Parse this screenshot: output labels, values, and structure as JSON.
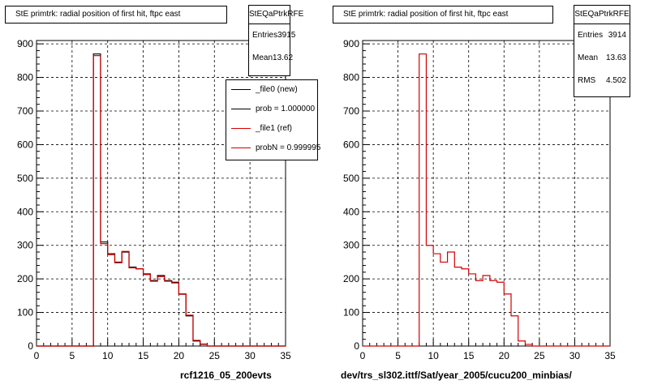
{
  "panels": [
    {
      "title": "StE primtrk: radial position of first hit, ftpc east",
      "stats": {
        "name": "StEQaPtrkRFE",
        "rows": [
          {
            "label": "Entries",
            "value": "3915"
          },
          {
            "label": "Mean",
            "value": "13.62"
          }
        ]
      },
      "legend": [
        {
          "text": "_file0 (new)",
          "color": "#000000"
        },
        {
          "text": "prob = 1.000000",
          "color": "#000000"
        },
        {
          "text": "_file1 (ref)",
          "color": "#d40000"
        },
        {
          "text": "probN = 0.999995",
          "color": "#d40000"
        }
      ],
      "caption": "rcf1216_05_200evts"
    },
    {
      "title": "StE primtrk: radial position of first hit, ftpc east",
      "stats": {
        "name": "StEQaPtrkRFE",
        "rows": [
          {
            "label": "Entries",
            "value": "3914"
          },
          {
            "label": "Mean",
            "value": "13.63"
          },
          {
            "label": "RMS",
            "value": "4.502"
          }
        ]
      },
      "legend": [],
      "caption": "dev/trs_sl302.ittf/Sat/year_2005/cucu200_minbias/"
    }
  ],
  "chart_data": [
    {
      "type": "histogram",
      "title": "StE primtrk: radial position of first hit, ftpc east",
      "xlim": [
        0,
        35
      ],
      "ylim": [
        0,
        910
      ],
      "xticks": [
        0,
        5,
        10,
        15,
        20,
        25,
        30,
        35
      ],
      "yticks": [
        0,
        100,
        200,
        300,
        400,
        500,
        600,
        700,
        800,
        900
      ],
      "grid": true,
      "bins": {
        "start": 0,
        "width": 1
      },
      "series": [
        {
          "name": "_file0 (new)",
          "color": "#000000",
          "values": [
            0,
            0,
            0,
            0,
            0,
            0,
            0,
            0,
            870,
            310,
            275,
            250,
            280,
            235,
            230,
            215,
            195,
            210,
            195,
            190,
            155,
            90,
            15,
            5,
            0,
            0,
            0,
            0,
            0,
            0,
            0,
            0,
            0,
            0,
            0
          ]
        },
        {
          "name": "_file1 (ref)",
          "color": "#d40000",
          "values": [
            0,
            0,
            0,
            0,
            0,
            0,
            0,
            0,
            865,
            305,
            272,
            248,
            282,
            233,
            230,
            213,
            193,
            207,
            193,
            188,
            154,
            92,
            17,
            6,
            0,
            0,
            0,
            0,
            0,
            0,
            0,
            0,
            0,
            0,
            0
          ]
        }
      ]
    },
    {
      "type": "histogram",
      "title": "StE primtrk: radial position of first hit, ftpc east",
      "xlim": [
        0,
        35
      ],
      "ylim": [
        0,
        910
      ],
      "xticks": [
        0,
        5,
        10,
        15,
        20,
        25,
        30,
        35
      ],
      "yticks": [
        0,
        100,
        200,
        300,
        400,
        500,
        600,
        700,
        800,
        900
      ],
      "grid": true,
      "bins": {
        "start": 0,
        "width": 1
      },
      "series": [
        {
          "color": "#d40000",
          "values": [
            0,
            0,
            0,
            0,
            0,
            0,
            0,
            0,
            870,
            300,
            275,
            250,
            280,
            235,
            230,
            215,
            195,
            210,
            195,
            190,
            155,
            90,
            15,
            5,
            0,
            0,
            0,
            0,
            0,
            0,
            0,
            0,
            0,
            0,
            0
          ]
        }
      ]
    }
  ]
}
